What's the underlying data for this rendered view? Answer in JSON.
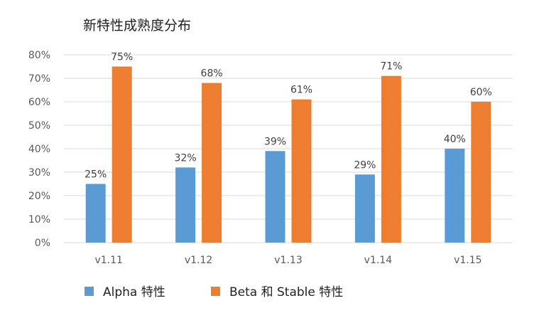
{
  "chart_data": {
    "type": "bar",
    "title": "新特性成熟度分布",
    "xlabel": "",
    "ylabel": "",
    "categories": [
      "v1.11",
      "v1.12",
      "v1.13",
      "v1.14",
      "v1.15"
    ],
    "series": [
      {
        "name": "Alpha 特性",
        "values": [
          25,
          32,
          39,
          29,
          40
        ],
        "labels": [
          "25%",
          "32%",
          "39%",
          "29%",
          "40%"
        ],
        "color": "#5B9BD5"
      },
      {
        "name": "Beta 和 Stable 特性",
        "values": [
          75,
          68,
          61,
          71,
          60
        ],
        "labels": [
          "75%",
          "68%",
          "61%",
          "71%",
          "60%"
        ],
        "color": "#ED7D31"
      }
    ],
    "ylim": [
      0,
      80
    ],
    "yticks": [
      0,
      10,
      20,
      30,
      40,
      50,
      60,
      70,
      80
    ],
    "ytick_labels": [
      "0%",
      "10%",
      "20%",
      "30%",
      "40%",
      "50%",
      "60%",
      "70%",
      "80%"
    ],
    "grid": true,
    "legend_position": "bottom-left",
    "gridline_color": "#D9D9D9"
  }
}
